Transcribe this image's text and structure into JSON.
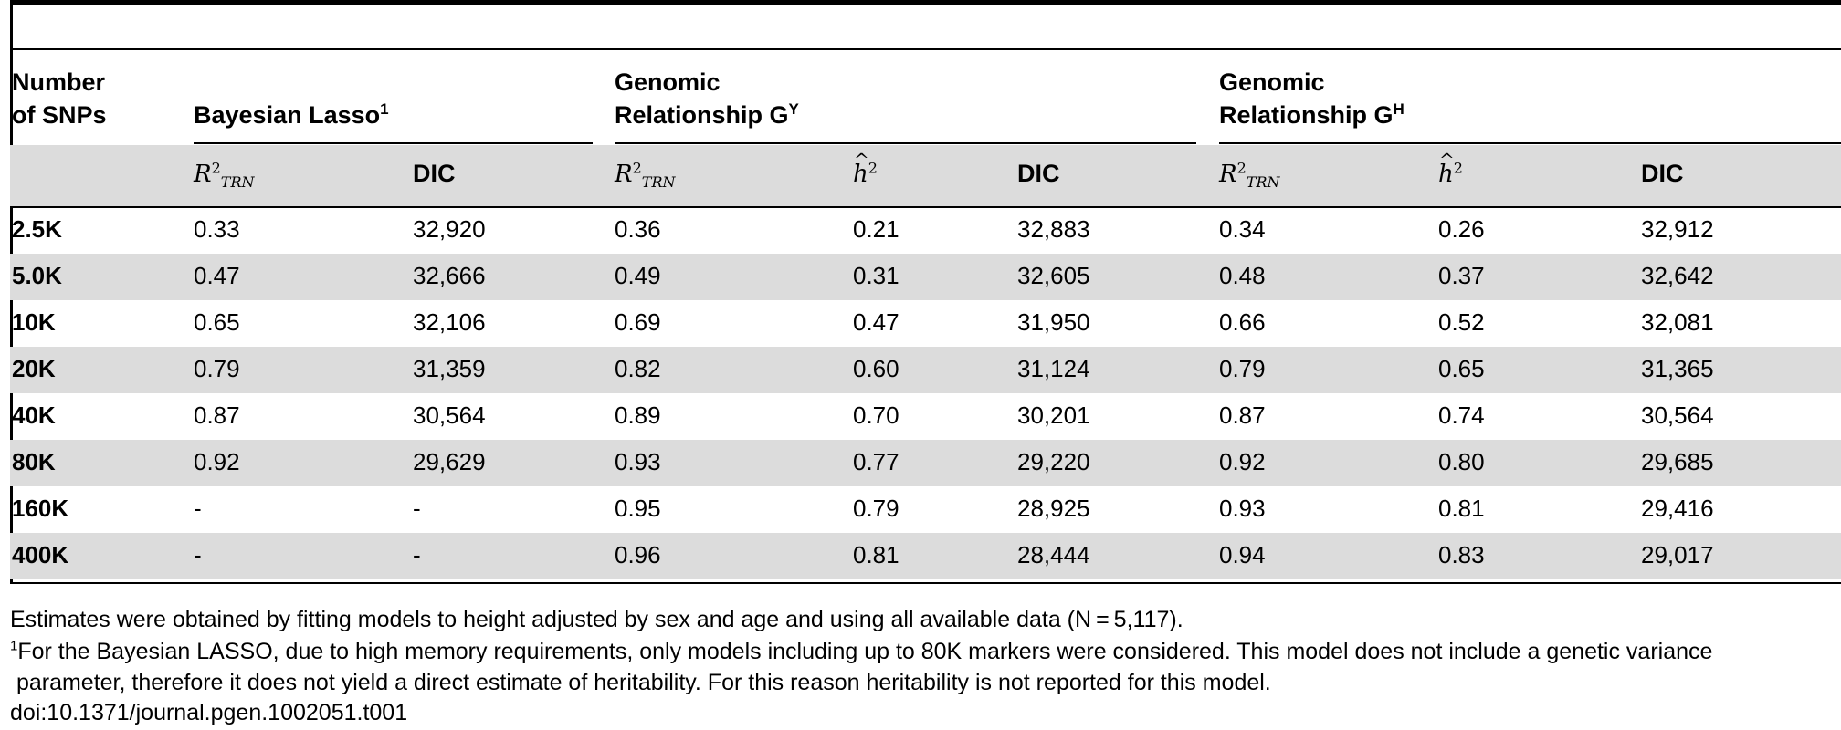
{
  "header": {
    "col0_line1": "Number",
    "col0_line2": "of SNPs",
    "group1": "Bayesian Lasso",
    "group1_sup": "1",
    "group2_line1": "Genomic",
    "group2_line2": "Relationship G",
    "group2_sup": "Y",
    "group3_line1": "Genomic",
    "group3_line2": "Relationship G",
    "group3_sup": "H"
  },
  "subheader": {
    "r2_base": "R",
    "r2_sup": "2",
    "r2_sub": "TRN",
    "h2_base": "h",
    "h2_sup": "2",
    "dic": "DIC"
  },
  "rows": [
    {
      "snps": "2.5K",
      "bl_r2": "0.33",
      "bl_dic": "32,920",
      "gy_r2": "0.36",
      "gy_h2": "0.21",
      "gy_dic": "32,883",
      "gh_r2": "0.34",
      "gh_h2": "0.26",
      "gh_dic": "32,912"
    },
    {
      "snps": "5.0K",
      "bl_r2": "0.47",
      "bl_dic": "32,666",
      "gy_r2": "0.49",
      "gy_h2": "0.31",
      "gy_dic": "32,605",
      "gh_r2": "0.48",
      "gh_h2": "0.37",
      "gh_dic": "32,642"
    },
    {
      "snps": "10K",
      "bl_r2": "0.65",
      "bl_dic": "32,106",
      "gy_r2": "0.69",
      "gy_h2": "0.47",
      "gy_dic": "31,950",
      "gh_r2": "0.66",
      "gh_h2": "0.52",
      "gh_dic": "32,081"
    },
    {
      "snps": "20K",
      "bl_r2": "0.79",
      "bl_dic": "31,359",
      "gy_r2": "0.82",
      "gy_h2": "0.60",
      "gy_dic": "31,124",
      "gh_r2": "0.79",
      "gh_h2": "0.65",
      "gh_dic": "31,365"
    },
    {
      "snps": "40K",
      "bl_r2": "0.87",
      "bl_dic": "30,564",
      "gy_r2": "0.89",
      "gy_h2": "0.70",
      "gy_dic": "30,201",
      "gh_r2": "0.87",
      "gh_h2": "0.74",
      "gh_dic": "30,564"
    },
    {
      "snps": "80K",
      "bl_r2": "0.92",
      "bl_dic": "29,629",
      "gy_r2": "0.93",
      "gy_h2": "0.77",
      "gy_dic": "29,220",
      "gh_r2": "0.92",
      "gh_h2": "0.80",
      "gh_dic": "29,685"
    },
    {
      "snps": "160K",
      "bl_r2": "-",
      "bl_dic": "-",
      "gy_r2": "0.95",
      "gy_h2": "0.79",
      "gy_dic": "28,925",
      "gh_r2": "0.93",
      "gh_h2": "0.81",
      "gh_dic": "29,416"
    },
    {
      "snps": "400K",
      "bl_r2": "-",
      "bl_dic": "-",
      "gy_r2": "0.96",
      "gy_h2": "0.81",
      "gy_dic": "28,444",
      "gh_r2": "0.94",
      "gh_h2": "0.83",
      "gh_dic": "29,017"
    }
  ],
  "footer": {
    "note": "Estimates were obtained by fitting models to height adjusted by sex and age and using all available data (N = 5,117).",
    "fn1_sup": "1",
    "fn1_line1": "For the Bayesian LASSO, due to high memory requirements, only models including up to 80K markers were considered. This model does not include a genetic variance",
    "fn1_line2": " parameter, therefore it does not yield a direct estimate of heritability. For this reason heritability is not reported for this model.",
    "doi": "doi:10.1371/journal.pgen.1002051.t001"
  }
}
